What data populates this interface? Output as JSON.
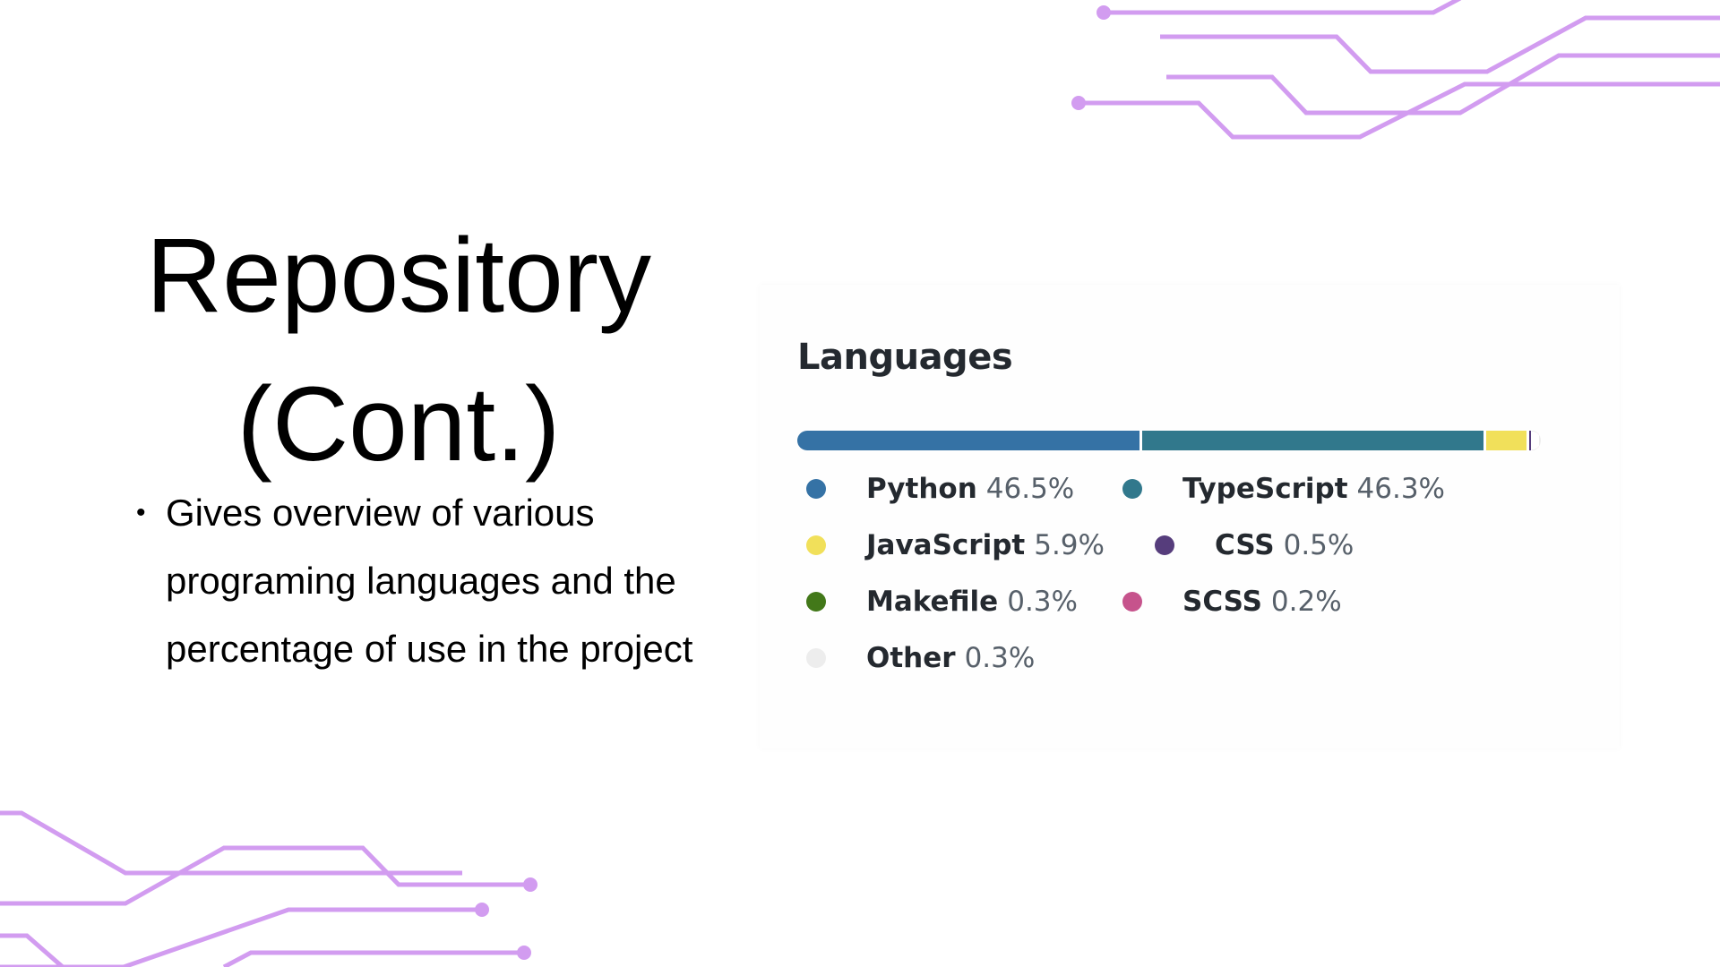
{
  "slide": {
    "title_lines": [
      "Repository",
      "(Cont.)"
    ],
    "bullets": [
      "Gives overview of various programing languages and the percentage of use in the project"
    ]
  },
  "languages_card": {
    "heading": "Languages",
    "languages": [
      {
        "name": "Python",
        "percent_label": "46.5%",
        "percent": 46.5,
        "color": "#3572A5"
      },
      {
        "name": "TypeScript",
        "percent_label": "46.3%",
        "percent": 46.3,
        "color": "#31788c"
      },
      {
        "name": "JavaScript",
        "percent_label": "5.9%",
        "percent": 5.9,
        "color": "#f1e05a"
      },
      {
        "name": "CSS",
        "percent_label": "0.5%",
        "percent": 0.5,
        "color": "#563d7c"
      },
      {
        "name": "Makefile",
        "percent_label": "0.3%",
        "percent": 0.3,
        "color": "#427819"
      },
      {
        "name": "SCSS",
        "percent_label": "0.2%",
        "percent": 0.2,
        "color": "#c6538c"
      },
      {
        "name": "Other",
        "percent_label": "0.3%",
        "percent": 0.3,
        "color": "#ededed"
      }
    ]
  },
  "decoration_color": "#d29cf0"
}
